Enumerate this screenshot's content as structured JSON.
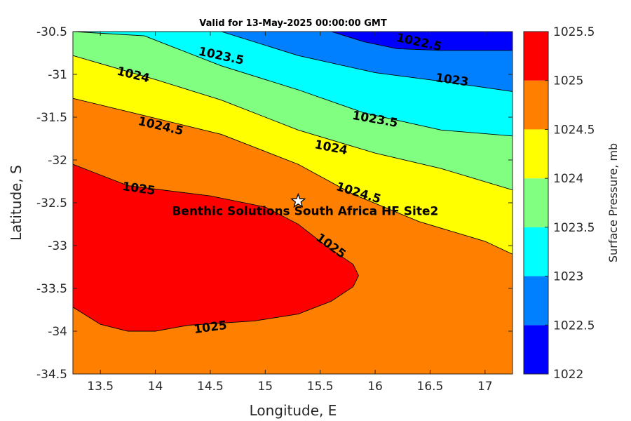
{
  "chart_data": {
    "type": "contour",
    "title": "Valid for 13-May-2025 00:00:00 GMT",
    "xlabel": "Longitude, E",
    "ylabel": "Latitude, S",
    "xlim": [
      13.25,
      17.25
    ],
    "ylim": [
      -34.5,
      -30.5
    ],
    "x_ticks": [
      "13.5",
      "14",
      "14.5",
      "15",
      "15.5",
      "16",
      "16.5",
      "17"
    ],
    "y_ticks": [
      "-30.5",
      "-31",
      "-31.5",
      "-32",
      "-32.5",
      "-33",
      "-33.5",
      "-34",
      "-34.5"
    ],
    "colorbar": {
      "label": "Surface Pressure, mb",
      "ticks": [
        "1022",
        "1022.5",
        "1023",
        "1023.5",
        "1024",
        "1024.5",
        "1025",
        "1025.5"
      ],
      "levels": [
        1022,
        1022.5,
        1023,
        1023.5,
        1024,
        1024.5,
        1025,
        1025.5
      ],
      "colors": [
        "#0000ff",
        "#0080ff",
        "#00ffff",
        "#80ff80",
        "#ffff00",
        "#ff8000",
        "#ff0000",
        "#800000"
      ]
    },
    "contours": [
      {
        "level": "1022.5",
        "points": [
          [
            15.6,
            -30.5
          ],
          [
            15.9,
            -30.62
          ],
          [
            16.2,
            -30.7
          ],
          [
            16.6,
            -30.72
          ],
          [
            17.25,
            -30.72
          ]
        ]
      },
      {
        "level": "1023",
        "points": [
          [
            14.6,
            -30.5
          ],
          [
            15.3,
            -30.78
          ],
          [
            16.0,
            -30.98
          ],
          [
            16.6,
            -31.08
          ],
          [
            17.25,
            -31.2
          ]
        ]
      },
      {
        "level": "1023.5",
        "points": [
          [
            13.25,
            -30.5
          ],
          [
            13.9,
            -30.55
          ],
          [
            14.6,
            -30.9
          ],
          [
            15.3,
            -31.18
          ],
          [
            15.9,
            -31.45
          ],
          [
            16.6,
            -31.65
          ],
          [
            17.25,
            -31.72
          ]
        ]
      },
      {
        "level": "1024",
        "points": [
          [
            13.25,
            -30.78
          ],
          [
            14.0,
            -31.06
          ],
          [
            14.6,
            -31.3
          ],
          [
            15.3,
            -31.65
          ],
          [
            16.0,
            -31.92
          ],
          [
            16.6,
            -32.1
          ],
          [
            17.25,
            -32.35
          ]
        ]
      },
      {
        "level": "1024.5",
        "points": [
          [
            13.25,
            -31.28
          ],
          [
            13.8,
            -31.45
          ],
          [
            14.6,
            -31.7
          ],
          [
            15.3,
            -32.05
          ],
          [
            15.8,
            -32.4
          ],
          [
            16.4,
            -32.72
          ],
          [
            17.0,
            -32.95
          ],
          [
            17.25,
            -33.1
          ]
        ]
      },
      {
        "level": "1025",
        "closed_at_edges": true,
        "points": [
          [
            13.25,
            -32.05
          ],
          [
            13.75,
            -32.3
          ],
          [
            14.5,
            -32.42
          ],
          [
            15.0,
            -32.55
          ],
          [
            15.3,
            -32.75
          ],
          [
            15.55,
            -33.0
          ],
          [
            15.8,
            -33.22
          ],
          [
            15.85,
            -33.35
          ],
          [
            15.8,
            -33.48
          ],
          [
            15.6,
            -33.65
          ],
          [
            15.3,
            -33.8
          ],
          [
            14.9,
            -33.88
          ],
          [
            14.3,
            -33.93
          ],
          [
            14.0,
            -34.0
          ],
          [
            13.75,
            -34.0
          ],
          [
            13.5,
            -33.92
          ],
          [
            13.25,
            -33.72
          ]
        ]
      }
    ],
    "contour_labels": [
      {
        "text": "1022.5",
        "x": 16.4,
        "y": -30.62,
        "angle": 12
      },
      {
        "text": "1023",
        "x": 16.7,
        "y": -31.06,
        "angle": 8
      },
      {
        "text": "1023.5",
        "x": 14.6,
        "y": -30.78,
        "angle": 12
      },
      {
        "text": "1023.5",
        "x": 16.0,
        "y": -31.52,
        "angle": 10
      },
      {
        "text": "1024",
        "x": 13.8,
        "y": -31.0,
        "angle": 14
      },
      {
        "text": "1024",
        "x": 15.6,
        "y": -31.85,
        "angle": 11
      },
      {
        "text": "1024.5",
        "x": 14.05,
        "y": -31.6,
        "angle": 13
      },
      {
        "text": "1024.5",
        "x": 15.85,
        "y": -32.38,
        "angle": 17
      },
      {
        "text": "1025",
        "x": 13.85,
        "y": -32.33,
        "angle": 8
      },
      {
        "text": "1025",
        "x": 15.6,
        "y": -33.0,
        "angle": 36
      },
      {
        "text": "1025",
        "x": 14.5,
        "y": -33.95,
        "angle": -8
      }
    ],
    "site": {
      "name": "Benthic Solutions South Africa HF Site2",
      "x": 15.3,
      "y": -32.48
    },
    "grid": false
  }
}
